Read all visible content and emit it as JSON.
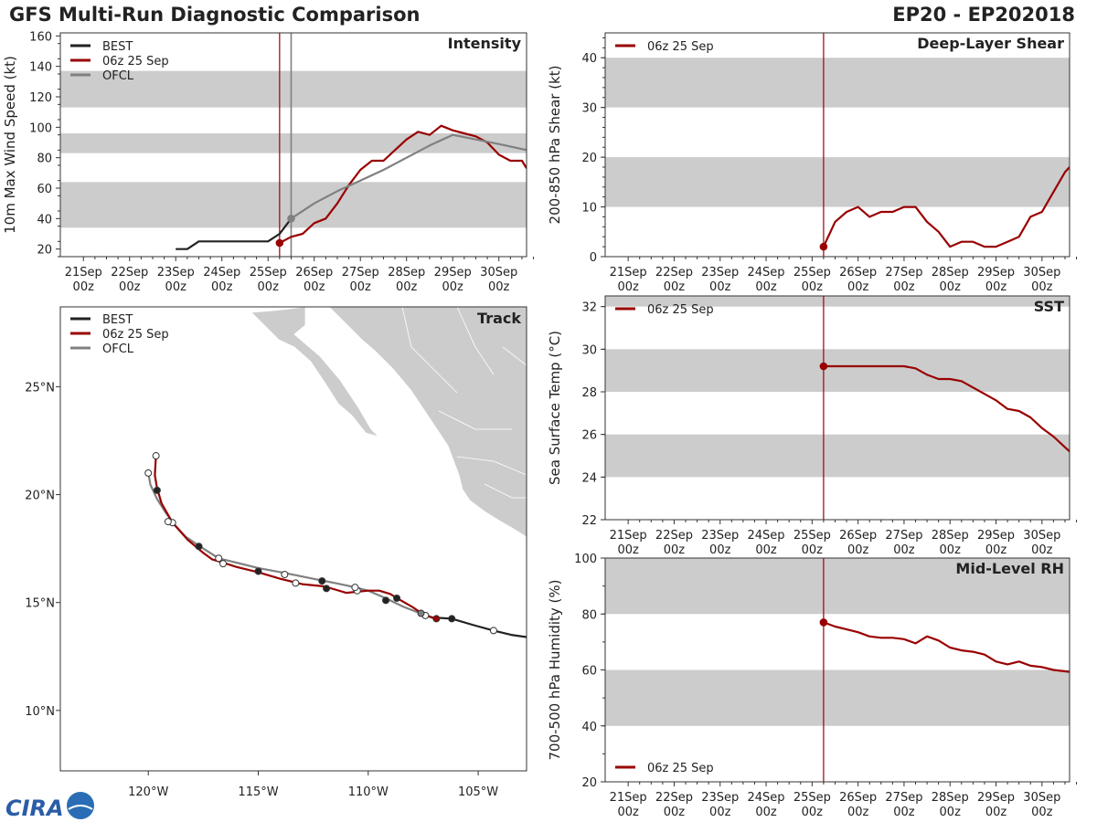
{
  "header": {
    "title": "GFS Multi-Run Diagnostic Comparison",
    "storm_id": "EP20 - EP202018"
  },
  "colors": {
    "best": "#222222",
    "gfs": "#990000",
    "ofcl": "#808080",
    "band": "#cccccc",
    "land": "#cccccc",
    "frame": "#333333"
  },
  "logo_text": "CIRA",
  "time_ticks": [
    {
      "day": "21Sep",
      "hour": "00z"
    },
    {
      "day": "22Sep",
      "hour": "00z"
    },
    {
      "day": "23Sep",
      "hour": "00z"
    },
    {
      "day": "24Sep",
      "hour": "00z"
    },
    {
      "day": "25Sep",
      "hour": "00z"
    },
    {
      "day": "26Sep",
      "hour": "00z"
    },
    {
      "day": "27Sep",
      "hour": "00z"
    },
    {
      "day": "28Sep",
      "hour": "00z"
    },
    {
      "day": "29Sep",
      "hour": "00z"
    },
    {
      "day": "30Sep",
      "hour": "00z"
    }
  ],
  "chart_data": [
    {
      "id": "intensity",
      "type": "line",
      "title": "Intensity",
      "ylabel": "10m Max Wind Speed (kt)",
      "xunit": "days since 21 Sep 00z",
      "xlim": [
        -0.5,
        9.6
      ],
      "ylim": [
        15,
        162
      ],
      "yticks": [
        20,
        40,
        60,
        80,
        100,
        120,
        140,
        160
      ],
      "bands": [
        [
          34,
          64
        ],
        [
          83,
          96
        ],
        [
          113,
          137
        ]
      ],
      "init_line": 4.25,
      "ofcl_line": 4.5,
      "legend": [
        "BEST",
        "06z 25 Sep",
        "OFCL"
      ],
      "series": [
        {
          "name": "BEST",
          "color": "best",
          "x": [
            2.0,
            2.25,
            2.5,
            2.75,
            3.0,
            3.5,
            4.0,
            4.25,
            4.5
          ],
          "y": [
            20,
            20,
            25,
            25,
            25,
            25,
            25,
            30,
            40
          ]
        },
        {
          "name": "06z 25 Sep",
          "color": "gfs",
          "x": [
            4.25,
            4.5,
            4.75,
            5.0,
            5.25,
            5.5,
            5.75,
            6.0,
            6.25,
            6.5,
            6.75,
            7.0,
            7.25,
            7.5,
            7.75,
            8.0,
            8.25,
            8.5,
            8.75,
            9.0,
            9.25,
            9.5,
            9.6
          ],
          "y": [
            24,
            28,
            30,
            37,
            40,
            50,
            62,
            72,
            78,
            78,
            85,
            92,
            97,
            95,
            101,
            98,
            96,
            94,
            90,
            82,
            78,
            78,
            73
          ]
        },
        {
          "name": "OFCL",
          "color": "ofcl",
          "x": [
            4.5,
            5.0,
            5.5,
            6.0,
            6.5,
            7.0,
            7.5,
            8.0,
            8.5,
            9.0,
            9.6
          ],
          "y": [
            40,
            50,
            58,
            65,
            72,
            80,
            88,
            95,
            92,
            89,
            85
          ]
        }
      ],
      "markers": [
        {
          "series": "06z 25 Sep",
          "x": 4.25,
          "y": 24,
          "fill": "gfs"
        },
        {
          "series": "OFCL",
          "x": 4.5,
          "y": 40,
          "fill": "ofcl"
        }
      ]
    },
    {
      "id": "shear",
      "type": "line",
      "title": "Deep-Layer Shear",
      "ylabel": "200-850 hPa Shear (kt)",
      "xunit": "days since 21 Sep 00z",
      "xlim": [
        -0.5,
        9.6
      ],
      "ylim": [
        0,
        45
      ],
      "yticks": [
        0,
        10,
        20,
        30,
        40
      ],
      "bands": [
        [
          10,
          20
        ],
        [
          30,
          40
        ]
      ],
      "init_line": 4.25,
      "legend": [
        "06z 25 Sep"
      ],
      "series": [
        {
          "name": "06z 25 Sep",
          "color": "gfs",
          "x": [
            4.25,
            4.5,
            4.75,
            5.0,
            5.25,
            5.5,
            5.75,
            6.0,
            6.25,
            6.5,
            6.75,
            7.0,
            7.25,
            7.5,
            7.75,
            8.0,
            8.25,
            8.5,
            8.75,
            9.0,
            9.25,
            9.5,
            9.6
          ],
          "y": [
            2,
            7,
            9,
            10,
            8,
            9,
            9,
            10,
            10,
            7,
            5,
            2,
            3,
            3,
            2,
            2,
            3,
            4,
            8,
            9,
            13,
            17,
            18
          ]
        }
      ],
      "markers": [
        {
          "series": "06z 25 Sep",
          "x": 4.25,
          "y": 2,
          "fill": "gfs"
        }
      ]
    },
    {
      "id": "sst",
      "type": "line",
      "title": "SST",
      "ylabel": "Sea Surface Temp (°C)",
      "xunit": "days since 21 Sep 00z",
      "xlim": [
        -0.5,
        9.6
      ],
      "ylim": [
        22,
        32.5
      ],
      "yticks": [
        22,
        24,
        26,
        28,
        30,
        32
      ],
      "bands": [
        [
          24,
          26
        ],
        [
          28,
          30
        ],
        [
          32,
          32.5
        ]
      ],
      "init_line": 4.25,
      "legend": [
        "06z 25 Sep"
      ],
      "series": [
        {
          "name": "06z 25 Sep",
          "color": "gfs",
          "x": [
            4.25,
            4.5,
            4.75,
            5.0,
            5.25,
            5.5,
            5.75,
            6.0,
            6.25,
            6.5,
            6.75,
            7.0,
            7.25,
            7.5,
            7.75,
            8.0,
            8.25,
            8.5,
            8.75,
            9.0,
            9.25,
            9.5,
            9.6
          ],
          "y": [
            29.2,
            29.2,
            29.2,
            29.2,
            29.2,
            29.2,
            29.2,
            29.2,
            29.1,
            28.8,
            28.6,
            28.6,
            28.5,
            28.2,
            27.9,
            27.6,
            27.2,
            27.1,
            26.8,
            26.3,
            25.9,
            25.4,
            25.2
          ]
        }
      ],
      "markers": [
        {
          "series": "06z 25 Sep",
          "x": 4.25,
          "y": 29.2,
          "fill": "gfs"
        }
      ]
    },
    {
      "id": "rh",
      "type": "line",
      "title": "Mid-Level RH",
      "ylabel": "700-500 hPa Humidity (%)",
      "xunit": "days since 21 Sep 00z",
      "xlim": [
        -0.5,
        9.6
      ],
      "ylim": [
        20,
        100
      ],
      "yticks": [
        20,
        40,
        60,
        80,
        100
      ],
      "bands": [
        [
          40,
          60
        ],
        [
          80,
          100
        ]
      ],
      "init_line": 4.25,
      "legend": [
        "06z 25 Sep"
      ],
      "series": [
        {
          "name": "06z 25 Sep",
          "color": "gfs",
          "x": [
            4.25,
            4.5,
            4.75,
            5.0,
            5.25,
            5.5,
            5.75,
            6.0,
            6.25,
            6.5,
            6.75,
            7.0,
            7.25,
            7.5,
            7.75,
            8.0,
            8.25,
            8.5,
            8.75,
            9.0,
            9.25,
            9.5,
            9.6
          ],
          "y": [
            77,
            75.5,
            74.5,
            73.5,
            72,
            71.5,
            71.5,
            71,
            69.5,
            72,
            70.5,
            68,
            67,
            66.5,
            65.5,
            63,
            62,
            63,
            61.5,
            61,
            60,
            59.5,
            59.3
          ]
        }
      ],
      "markers": [
        {
          "series": "06z 25 Sep",
          "x": 4.25,
          "y": 77,
          "fill": "gfs"
        }
      ]
    },
    {
      "id": "track",
      "type": "scatter",
      "title": "Track",
      "xlim": [
        -124,
        -102.8
      ],
      "ylim": [
        7.2,
        28.7
      ],
      "xticks": [
        {
          "value": -120,
          "label": "120°W"
        },
        {
          "value": -115,
          "label": "115°W"
        },
        {
          "value": -110,
          "label": "110°W"
        },
        {
          "value": -105,
          "label": "105°W"
        }
      ],
      "yticks": [
        {
          "value": 10,
          "label": "10°N"
        },
        {
          "value": 15,
          "label": "15°N"
        },
        {
          "value": 20,
          "label": "20°N"
        },
        {
          "value": 25,
          "label": "25°N"
        }
      ],
      "legend": [
        "BEST",
        "06z 25 Sep",
        "OFCL"
      ],
      "series": [
        {
          "name": "BEST",
          "color": "best",
          "lon": [
            -102.8,
            -103.5,
            -104.3,
            -105.2,
            -106.2,
            -107.0
          ],
          "lat": [
            13.4,
            13.5,
            13.7,
            13.95,
            14.25,
            14.3
          ]
        },
        {
          "name": "06z 25 Sep",
          "color": "gfs",
          "lon": [
            -106.9,
            -107.5,
            -108.0,
            -108.6,
            -109.0,
            -109.5,
            -110.0,
            -110.5,
            -111.0,
            -111.5,
            -112.0,
            -113.0,
            -114.0,
            -115.0,
            -116.0,
            -116.6,
            -117.1,
            -117.5,
            -118.2,
            -118.9,
            -119.4,
            -119.6,
            -119.7,
            -119.65
          ],
          "lat": [
            14.25,
            14.45,
            14.8,
            15.15,
            15.4,
            15.55,
            15.55,
            15.5,
            15.45,
            15.6,
            15.75,
            15.85,
            16.1,
            16.4,
            16.65,
            16.85,
            17.0,
            17.3,
            17.9,
            18.7,
            19.6,
            20.3,
            20.9,
            21.8
          ]
        },
        {
          "name": "OFCL",
          "color": "ofcl",
          "lon": [
            -107.0,
            -107.5,
            -108.4,
            -109.2,
            -110.0,
            -110.8,
            -111.5,
            -112.5,
            -113.7,
            -115.0,
            -116.0,
            -116.8,
            -117.5,
            -118.3,
            -118.8,
            -119.2,
            -119.6,
            -119.9,
            -120.0
          ],
          "lat": [
            14.25,
            14.45,
            14.8,
            15.2,
            15.55,
            15.75,
            15.9,
            16.1,
            16.35,
            16.6,
            16.85,
            17.05,
            17.5,
            18.05,
            18.6,
            19.15,
            19.8,
            20.45,
            21.0
          ]
        }
      ],
      "markers": [
        {
          "series": "BEST",
          "fill": "best",
          "lon": [
            -106.2
          ],
          "lat": [
            14.25
          ]
        },
        {
          "series": "BEST",
          "fill": "white",
          "lon": [
            -104.3
          ],
          "lat": [
            13.7
          ]
        },
        {
          "series": "06z 25 Sep",
          "fill": "gfs",
          "lon": [
            -106.9
          ],
          "lat": [
            14.25
          ]
        },
        {
          "series": "06z 25 Sep",
          "fill": "best",
          "lon": [
            -108.7,
            -109.2,
            -111.9,
            -112.1,
            -115.0,
            -117.7,
            -119.6
          ],
          "lat": [
            15.2,
            15.1,
            15.65,
            16.0,
            16.45,
            17.6,
            20.2
          ]
        },
        {
          "series": "06z 25 Sep",
          "fill": "white",
          "lon": [
            -107.4,
            -110.5,
            -113.3,
            -116.6,
            -118.9,
            -119.65
          ],
          "lat": [
            14.4,
            15.55,
            15.9,
            16.8,
            18.7,
            21.8
          ]
        },
        {
          "series": "OFCL",
          "fill": "ofcl",
          "lon": [
            -107.6
          ],
          "lat": [
            14.5
          ]
        },
        {
          "series": "OFCL",
          "fill": "white",
          "lon": [
            -110.6,
            -113.8,
            -116.8,
            -119.1,
            -120.0
          ],
          "lat": [
            15.7,
            16.3,
            17.05,
            18.75,
            21.0
          ]
        }
      ]
    }
  ]
}
